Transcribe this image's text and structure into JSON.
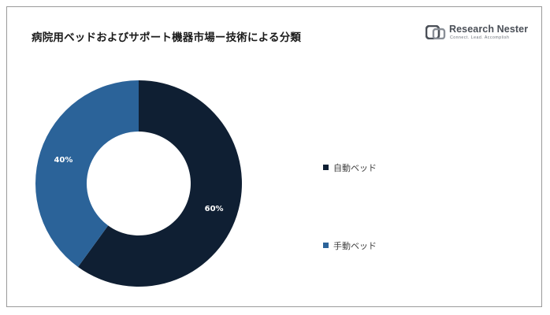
{
  "header": {
    "title": "病院用ベッドおよびサポート機器市場ー技術による分類"
  },
  "logo": {
    "name": "Research Nester",
    "tagline": "Connect. Lead. Accomplish"
  },
  "colors": {
    "dark_navy": "#0f1f33",
    "steel_blue": "#2b6399",
    "frame_border": "#9a9a9a",
    "title_text": "#1a1a1a",
    "legend_text": "#404040"
  },
  "chart_data": {
    "type": "pie",
    "donut": true,
    "title": "病院用ベッドおよびサポート機器市場ー技術による分類",
    "categories": [
      "自動ベッド",
      "手動ベッド"
    ],
    "values": [
      60,
      40
    ],
    "unit": "%",
    "data_labels": [
      "60%",
      "40%"
    ],
    "series_colors": [
      "#0f1f33",
      "#2b6399"
    ],
    "legend": {
      "placement": "right",
      "entries": [
        "自動ベッド",
        "手動ベッド"
      ]
    }
  }
}
